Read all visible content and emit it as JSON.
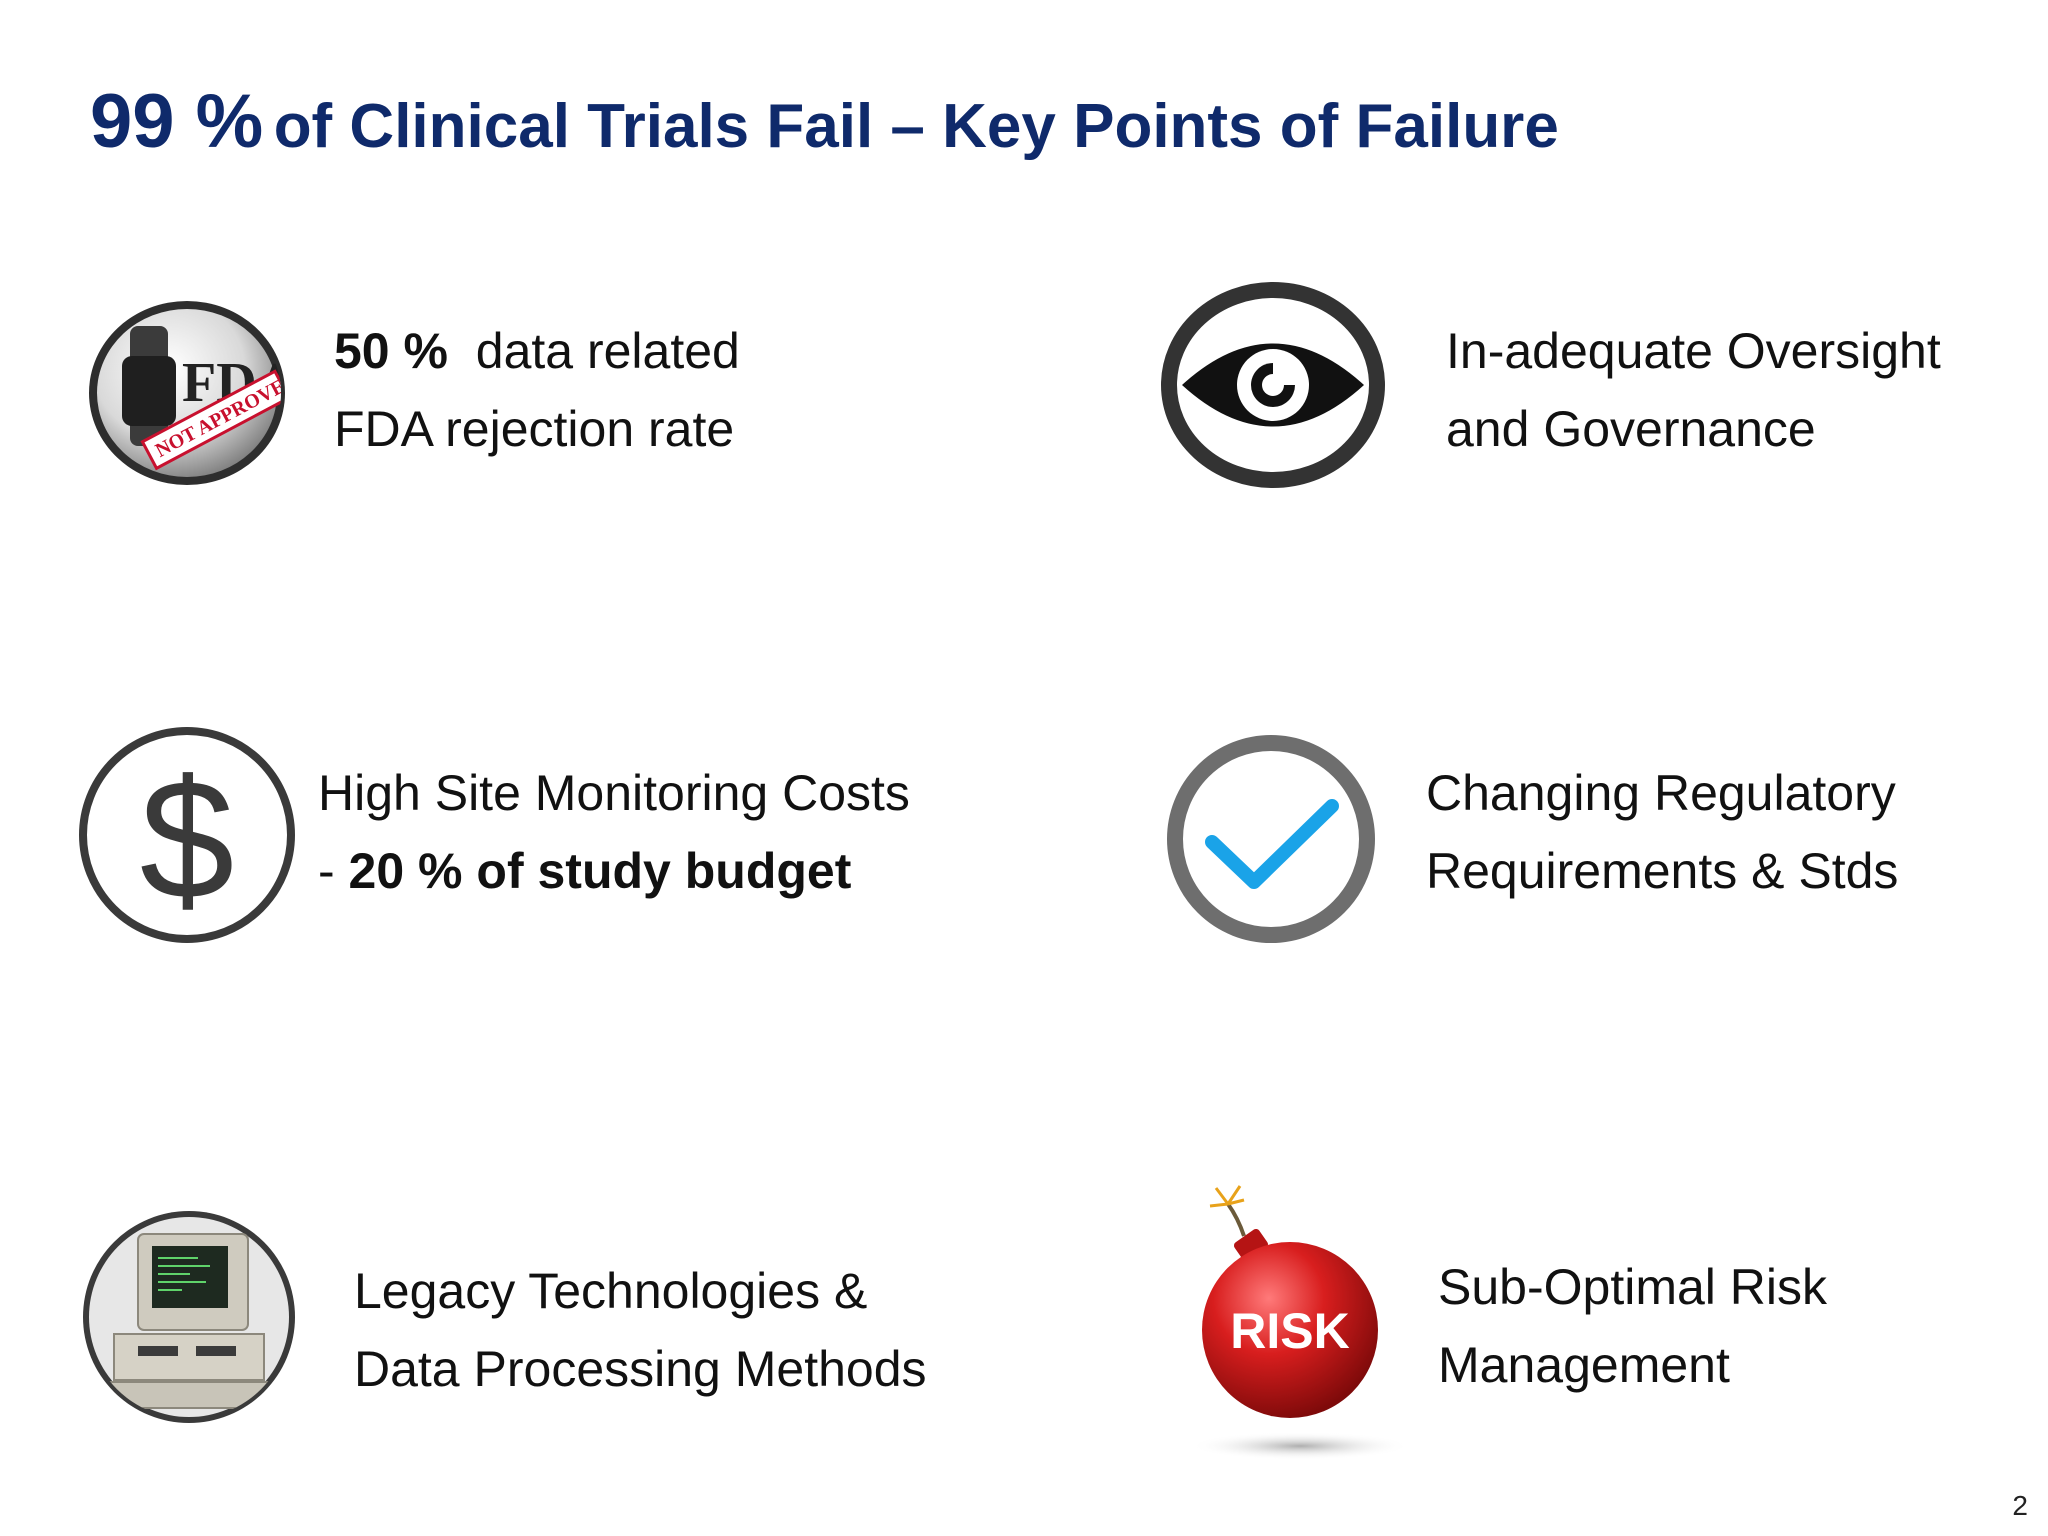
{
  "title": {
    "highlight": "99 %",
    "rest": "of Clinical Trials Fail – Key Points of Failure"
  },
  "items": [
    {
      "icon": "fda-not-approved-stamp-icon",
      "line1_bold": "50 %",
      "line1_rest": "data related",
      "line2": "FDA rejection rate",
      "stamp_brand": "FDA",
      "stamp_text": "NOT APPROVED"
    },
    {
      "icon": "eye-icon",
      "line1": "In-adequate Oversight",
      "line2": "and Governance"
    },
    {
      "icon": "dollar-icon",
      "line1": "High Site Monitoring Costs",
      "line2_prefix": "- ",
      "line2_bold": "20 % of study budget"
    },
    {
      "icon": "checkmark-icon",
      "line1": "Changing Regulatory",
      "line2": "Requirements & Stds"
    },
    {
      "icon": "legacy-computer-icon",
      "line1": "Legacy Technologies &",
      "line2": "Data Processing Methods"
    },
    {
      "icon": "risk-bomb-icon",
      "line1": "Sub-Optimal Risk",
      "line2": "Management",
      "bomb_label": "RISK"
    }
  ],
  "page_number": "2",
  "colors": {
    "title": "#0f2a6b",
    "icon_ring": "#3a3a3a",
    "check": "#1aa3e8",
    "bomb": "#d81e1e",
    "stamp": "#c8102e"
  }
}
